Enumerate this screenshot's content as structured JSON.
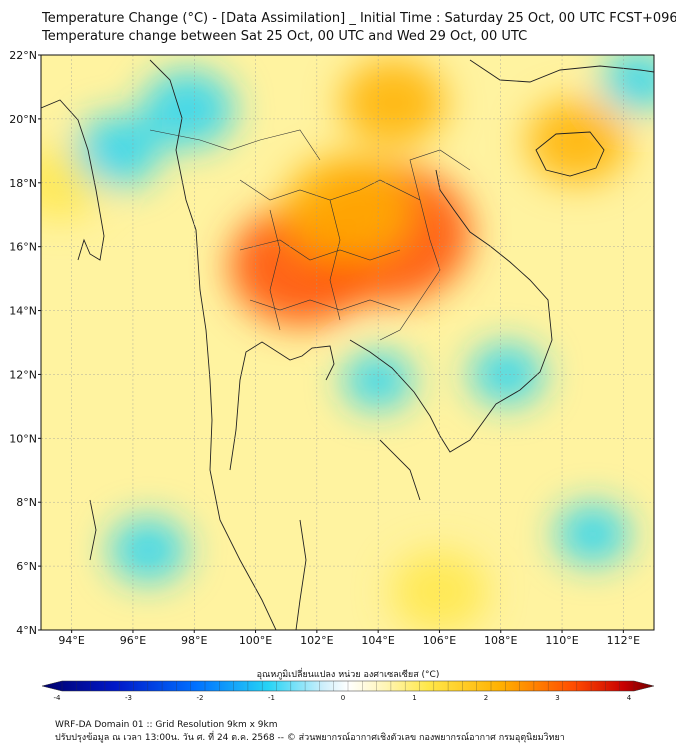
{
  "header": {
    "title_line1": "Temperature Change (°C) - [Data Assimilation] _ Initial Time : Saturday 25 Oct, 00 UTC FCST+096",
    "title_line2": "Temperature change between Sat 25 Oct, 00 UTC and Wed 29 Oct, 00 UTC"
  },
  "map": {
    "lat_labels": [
      "22°N",
      "20°N",
      "18°N",
      "16°N",
      "14°N",
      "12°N",
      "10°N",
      "8°N",
      "6°N",
      "4°N"
    ],
    "lon_labels": [
      "94°E",
      "96°E",
      "98°E",
      "100°E",
      "102°E",
      "104°E",
      "106°E",
      "108°E",
      "110°E",
      "112°E"
    ],
    "lat_range": [
      4,
      22
    ],
    "lon_range": [
      93,
      113
    ],
    "grid": true,
    "hotspots": [
      {
        "lon": 104.3,
        "lat": 16.4,
        "delta": 3.2
      },
      {
        "lon": 101.5,
        "lat": 15.4,
        "delta": 2.6
      },
      {
        "lon": 103.0,
        "lat": 17.2,
        "delta": 2.2
      },
      {
        "lon": 104.5,
        "lat": 20.5,
        "delta": 1.6
      },
      {
        "lon": 110.5,
        "lat": 19.3,
        "delta": 1.5
      },
      {
        "lon": 106.0,
        "lat": 5.2,
        "delta": 1.4
      },
      {
        "lon": 93.6,
        "lat": 18.0,
        "delta": 1.1
      },
      {
        "lon": 97.8,
        "lat": 20.3,
        "delta": -1.3
      },
      {
        "lon": 95.5,
        "lat": 19.0,
        "delta": -1.1
      },
      {
        "lon": 108.2,
        "lat": 12.0,
        "delta": -0.8
      },
      {
        "lon": 104.0,
        "lat": 11.8,
        "delta": -0.7
      },
      {
        "lon": 96.5,
        "lat": 6.5,
        "delta": -0.9
      },
      {
        "lon": 111.0,
        "lat": 7.0,
        "delta": -0.8
      },
      {
        "lon": 112.5,
        "lat": 21.2,
        "delta": -0.8
      }
    ]
  },
  "colorbar": {
    "title": "อุณหภูมิเปลี่ยนแปลง หน่วย องศาเซลเซียส (°C)",
    "ticks": [
      "-4",
      "-3",
      "-2",
      "-1",
      "0",
      "1",
      "2",
      "3",
      "4"
    ],
    "min": -4,
    "max": 4
  },
  "footer": {
    "line1": "WRF-DA Domain 01 :: Grid Resolution 9km x 9km",
    "line2": "ปรับปรุงข้อมูล ณ เวลา 13:00น. วัน ศ. ที่ 24 ต.ค. 2568 -- © ส่วนพยากรณ์อากาศเชิงตัวเลข กองพยากรณ์อากาศ กรมอุตุนิยมวิทยา"
  }
}
